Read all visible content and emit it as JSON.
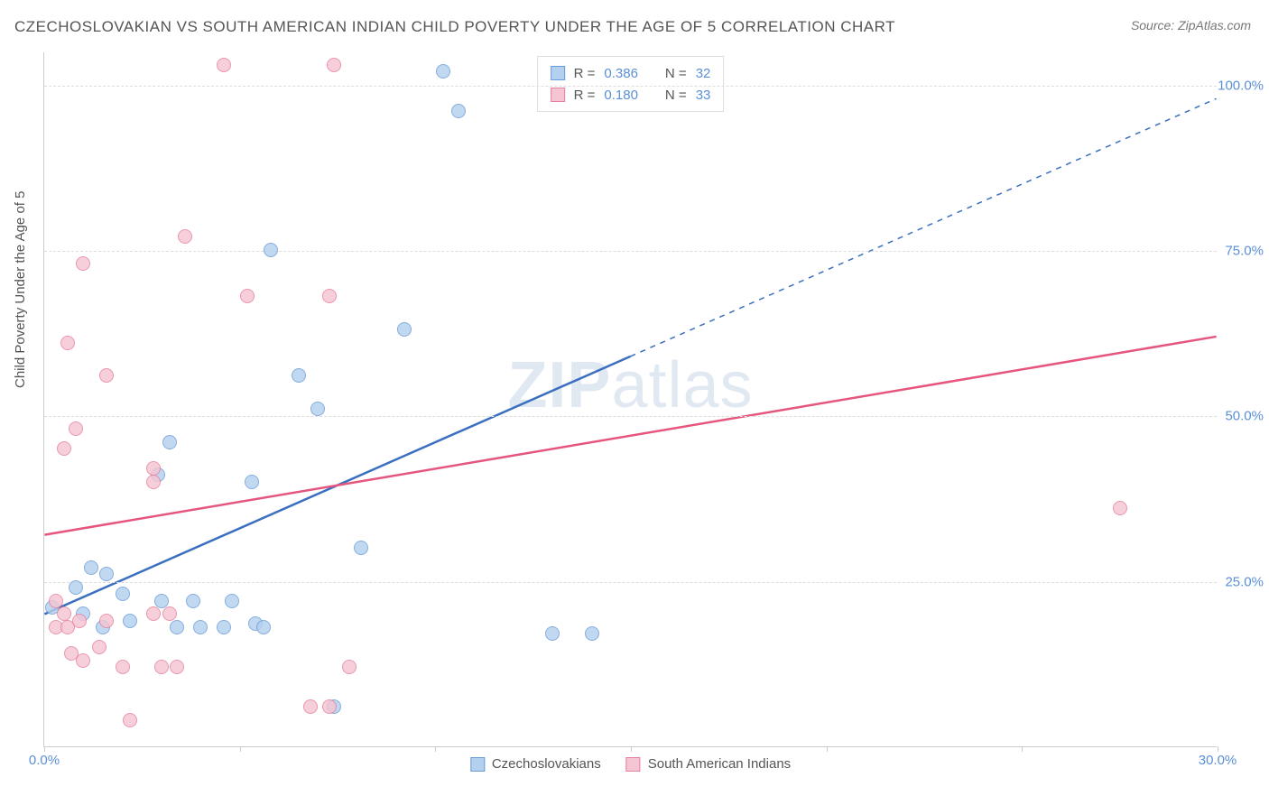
{
  "title": "CZECHOSLOVAKIAN VS SOUTH AMERICAN INDIAN CHILD POVERTY UNDER THE AGE OF 5 CORRELATION CHART",
  "source": "Source: ZipAtlas.com",
  "ylabel": "Child Poverty Under the Age of 5",
  "watermark_a": "ZIP",
  "watermark_b": "atlas",
  "chart": {
    "type": "scatter",
    "xlim": [
      0,
      30
    ],
    "ylim": [
      0,
      105
    ],
    "xticks": [
      {
        "v": 0,
        "label": "0.0%"
      },
      {
        "v": 5,
        "label": ""
      },
      {
        "v": 10,
        "label": ""
      },
      {
        "v": 15,
        "label": ""
      },
      {
        "v": 20,
        "label": ""
      },
      {
        "v": 25,
        "label": ""
      },
      {
        "v": 30,
        "label": "30.0%"
      }
    ],
    "yticks": [
      {
        "v": 25,
        "label": "25.0%"
      },
      {
        "v": 50,
        "label": "50.0%"
      },
      {
        "v": 75,
        "label": "75.0%"
      },
      {
        "v": 100,
        "label": "100.0%"
      }
    ],
    "background_color": "#ffffff",
    "grid_color": "#dddddd",
    "point_radius": 8,
    "series": [
      {
        "name": "Czechoslovakians",
        "fill": "#b4d0ef",
        "stroke": "#6b9cd8",
        "line_color": "#3b6fc0",
        "R": "0.386",
        "N": "32",
        "trend": {
          "x1": 0,
          "y1": 20,
          "x2_solid": 15,
          "y2_solid": 59,
          "x2": 30,
          "y2": 98,
          "dashed_from": 15
        },
        "points": [
          {
            "x": 10.2,
            "y": 102
          },
          {
            "x": 10.6,
            "y": 96
          },
          {
            "x": 5.8,
            "y": 75
          },
          {
            "x": 6.5,
            "y": 56
          },
          {
            "x": 9.2,
            "y": 63
          },
          {
            "x": 7.0,
            "y": 51
          },
          {
            "x": 3.2,
            "y": 46
          },
          {
            "x": 2.9,
            "y": 41
          },
          {
            "x": 5.3,
            "y": 40
          },
          {
            "x": 8.1,
            "y": 30
          },
          {
            "x": 0.2,
            "y": 21
          },
          {
            "x": 0.8,
            "y": 24
          },
          {
            "x": 1.2,
            "y": 27
          },
          {
            "x": 1.6,
            "y": 26
          },
          {
            "x": 1.0,
            "y": 20
          },
          {
            "x": 2.2,
            "y": 19
          },
          {
            "x": 1.5,
            "y": 18
          },
          {
            "x": 2.0,
            "y": 23
          },
          {
            "x": 3.0,
            "y": 22
          },
          {
            "x": 3.4,
            "y": 18
          },
          {
            "x": 3.8,
            "y": 22
          },
          {
            "x": 4.0,
            "y": 18
          },
          {
            "x": 4.8,
            "y": 22
          },
          {
            "x": 4.6,
            "y": 18
          },
          {
            "x": 5.4,
            "y": 18.5
          },
          {
            "x": 5.6,
            "y": 18
          },
          {
            "x": 7.4,
            "y": 6
          },
          {
            "x": 13.0,
            "y": 17
          },
          {
            "x": 14.0,
            "y": 17
          }
        ]
      },
      {
        "name": "South American Indians",
        "fill": "#f5c5d3",
        "stroke": "#e6809c",
        "line_color": "#e6557c",
        "R": "0.180",
        "N": "33",
        "trend": {
          "x1": 0,
          "y1": 32,
          "x2_solid": 30,
          "y2_solid": 62,
          "x2": 30,
          "y2": 62,
          "dashed_from": 30
        },
        "points": [
          {
            "x": 4.6,
            "y": 103
          },
          {
            "x": 7.4,
            "y": 103
          },
          {
            "x": 3.6,
            "y": 77
          },
          {
            "x": 1.0,
            "y": 73
          },
          {
            "x": 5.2,
            "y": 68
          },
          {
            "x": 7.3,
            "y": 68
          },
          {
            "x": 0.6,
            "y": 61
          },
          {
            "x": 1.6,
            "y": 56
          },
          {
            "x": 0.8,
            "y": 48
          },
          {
            "x": 0.5,
            "y": 45
          },
          {
            "x": 2.8,
            "y": 42
          },
          {
            "x": 2.8,
            "y": 40
          },
          {
            "x": 27.5,
            "y": 36
          },
          {
            "x": 0.3,
            "y": 22
          },
          {
            "x": 0.3,
            "y": 18
          },
          {
            "x": 0.5,
            "y": 20
          },
          {
            "x": 0.6,
            "y": 18
          },
          {
            "x": 0.9,
            "y": 19
          },
          {
            "x": 1.6,
            "y": 19
          },
          {
            "x": 2.8,
            "y": 20
          },
          {
            "x": 3.2,
            "y": 20
          },
          {
            "x": 0.7,
            "y": 14
          },
          {
            "x": 1.0,
            "y": 13
          },
          {
            "x": 1.4,
            "y": 15
          },
          {
            "x": 2.0,
            "y": 12
          },
          {
            "x": 3.0,
            "y": 12
          },
          {
            "x": 3.4,
            "y": 12
          },
          {
            "x": 7.8,
            "y": 12
          },
          {
            "x": 6.8,
            "y": 6
          },
          {
            "x": 7.3,
            "y": 6
          },
          {
            "x": 2.2,
            "y": 4
          }
        ]
      }
    ]
  },
  "legend_top": {
    "rows": [
      {
        "swatch_fill": "#b4d0ef",
        "swatch_stroke": "#6b9cd8",
        "R_label": "R =",
        "R": "0.386",
        "N_label": "N =",
        "N": "32"
      },
      {
        "swatch_fill": "#f5c5d3",
        "swatch_stroke": "#e6809c",
        "R_label": "R =",
        "R": "0.180",
        "N_label": "N =",
        "N": "33"
      }
    ]
  },
  "legend_bottom": [
    {
      "swatch_fill": "#b4d0ef",
      "swatch_stroke": "#6b9cd8",
      "label": "Czechoslovakians"
    },
    {
      "swatch_fill": "#f5c5d3",
      "swatch_stroke": "#e6809c",
      "label": "South American Indians"
    }
  ]
}
